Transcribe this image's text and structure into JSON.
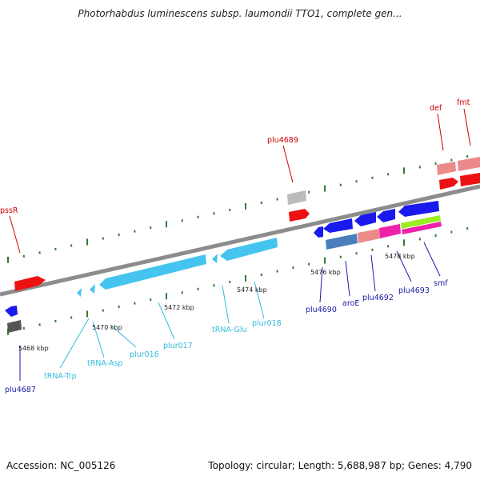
{
  "title": "Photorhabdus luminescens subsp. laumondii TTO1, complete gen...",
  "footer": {
    "accession": "Accession: NC_005126",
    "summary": "Topology: circular; Length: 5,688,987 bp; Genes: 4,790"
  },
  "colors": {
    "backbone": "#8c8c8c",
    "tick": "#2e7d2e",
    "label_red": "#cc0000",
    "label_navy": "#1a1aa6",
    "label_cyan": "#33bbdd",
    "gene_red": "#ee1111",
    "gene_pink": "#ec8a8a",
    "gene_blue": "#1a1aee",
    "gene_cyan": "#44c4ee",
    "gene_steel": "#4a7fbb",
    "gene_magenta": "#ee22aa",
    "gene_lime": "#99ee22",
    "gene_gray": "#bbbbbb",
    "gene_darkgray": "#555555"
  },
  "kbp_ticks": [
    "5468 kbp",
    "5470 kbp",
    "5472 kbp",
    "5474 kbp",
    "5476 kbp",
    "5478 kbp"
  ],
  "features": [
    {
      "name": "pssR",
      "color": "red"
    },
    {
      "name": "plu4689",
      "color": "red"
    },
    {
      "name": "def",
      "color": "red"
    },
    {
      "name": "fmt",
      "color": "red"
    },
    {
      "name": "plu4687",
      "color": "navy"
    },
    {
      "name": "tRNA-Trp",
      "color": "cyan"
    },
    {
      "name": "tRNA-Asp",
      "color": "cyan"
    },
    {
      "name": "plur016",
      "color": "cyan"
    },
    {
      "name": "plur017",
      "color": "cyan"
    },
    {
      "name": "tRNA-Glu",
      "color": "cyan"
    },
    {
      "name": "plur018",
      "color": "cyan"
    },
    {
      "name": "plu4690",
      "color": "navy"
    },
    {
      "name": "aroE",
      "color": "navy"
    },
    {
      "name": "plu4692",
      "color": "navy"
    },
    {
      "name": "plu4693",
      "color": "navy"
    },
    {
      "name": "smf",
      "color": "navy"
    }
  ]
}
